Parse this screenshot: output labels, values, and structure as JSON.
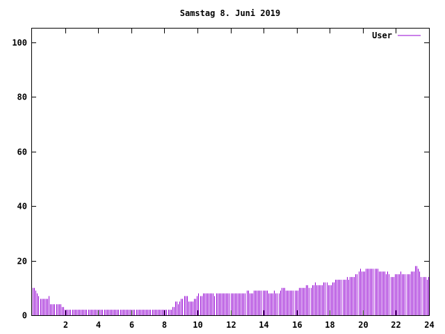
{
  "title": "Samstag 8. Juni 2019",
  "colors": {
    "series": "#9400d3",
    "axis": "#000000",
    "background": "#ffffff"
  },
  "chart_data": {
    "type": "bar",
    "title": "Samstag 8. Juni 2019",
    "xlabel": "",
    "ylabel": "",
    "xlim": [
      0,
      24
    ],
    "ylim": [
      0,
      105
    ],
    "xticks": [
      2,
      4,
      6,
      8,
      10,
      12,
      14,
      16,
      18,
      20,
      22,
      24
    ],
    "yticks": [
      0,
      20,
      40,
      60,
      80,
      100
    ],
    "grid": false,
    "legend": "top-right",
    "bin_hours": 0.0833,
    "series": [
      {
        "name": "User",
        "color": "#9400d3",
        "values": [
          10,
          10,
          9,
          8,
          7,
          6,
          6,
          6,
          6,
          6,
          6,
          7,
          4,
          4,
          4,
          4,
          4,
          4,
          4,
          4,
          3,
          3,
          2,
          2,
          2,
          2,
          2,
          2,
          2,
          2,
          2,
          2,
          2,
          2,
          2,
          2,
          2,
          2,
          2,
          2,
          2,
          2,
          2,
          2,
          2,
          2,
          2,
          2,
          2,
          2,
          2,
          2,
          2,
          2,
          2,
          2,
          2,
          2,
          2,
          2,
          2,
          2,
          2,
          2,
          2,
          2,
          2,
          2,
          2,
          2,
          2,
          2,
          2,
          2,
          2,
          2,
          2,
          2,
          2,
          2,
          2,
          2,
          2,
          2,
          2,
          2,
          2,
          2,
          2,
          2,
          2,
          2,
          2,
          2,
          2,
          2,
          3,
          3,
          5,
          5,
          4,
          5,
          6,
          6,
          7,
          7,
          7,
          5,
          5,
          5,
          5,
          6,
          6,
          7,
          8,
          7,
          7,
          8,
          8,
          8,
          8,
          8,
          8,
          8,
          8,
          7,
          8,
          8,
          8,
          8,
          8,
          8,
          8,
          8,
          8,
          8,
          8,
          8,
          8,
          8,
          8,
          8,
          8,
          8,
          8,
          8,
          8,
          9,
          9,
          8,
          8,
          8,
          9,
          9,
          9,
          9,
          9,
          9,
          9,
          9,
          9,
          9,
          8,
          8,
          8,
          8,
          9,
          8,
          8,
          8,
          9,
          10,
          10,
          10,
          9,
          9,
          9,
          9,
          9,
          9,
          9,
          9,
          9,
          10,
          10,
          10,
          10,
          10,
          11,
          11,
          10,
          10,
          11,
          11,
          12,
          11,
          11,
          11,
          11,
          11,
          12,
          12,
          12,
          11,
          11,
          11,
          12,
          12,
          13,
          13,
          13,
          13,
          13,
          13,
          13,
          13,
          14,
          13,
          14,
          14,
          14,
          14,
          15,
          15,
          16,
          17,
          16,
          16,
          16,
          17,
          17,
          17,
          17,
          17,
          17,
          17,
          17,
          17,
          16,
          16,
          16,
          16,
          16,
          15,
          16,
          15,
          14,
          14,
          14,
          15,
          15,
          15,
          15,
          16,
          15,
          15,
          15,
          15,
          15,
          15,
          16,
          16,
          16,
          18,
          18,
          17,
          16,
          14,
          14,
          14,
          14,
          13,
          14
        ]
      }
    ]
  }
}
